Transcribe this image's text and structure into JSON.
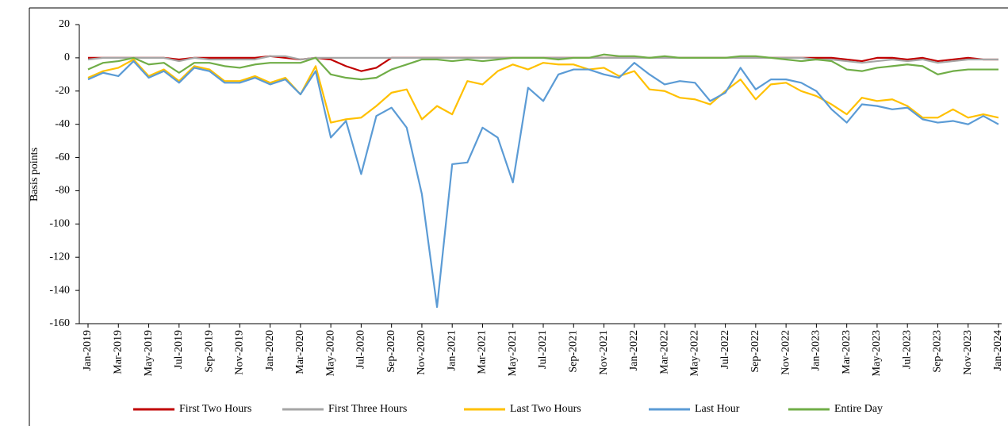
{
  "chart_data": {
    "type": "line",
    "ylabel": "Basis points",
    "categories": [
      "Jan-2019",
      null,
      "Mar-2019",
      null,
      "May-2019",
      null,
      "Jul-2019",
      null,
      "Sep-2019",
      null,
      "Nov-2019",
      null,
      "Jan-2020",
      null,
      "Mar-2020",
      null,
      "May-2020",
      null,
      "Jul-2020",
      null,
      "Sep-2020",
      null,
      "Nov-2020",
      null,
      "Jan-2021",
      null,
      "Mar-2021",
      null,
      "May-2021",
      null,
      "Jul-2021",
      null,
      "Sep-2021",
      null,
      "Nov-2021",
      null,
      "Jan-2022",
      null,
      "Mar-2022",
      null,
      "May-2022",
      null,
      "Jul-2022",
      null,
      "Sep-2022",
      null,
      "Nov-2022",
      null,
      "Jan-2023",
      null,
      "Mar-2023",
      null,
      "May-2023",
      null,
      "Jul-2023",
      null,
      "Sep-2023",
      null,
      "Nov-2023",
      null,
      "Jan-2024"
    ],
    "series": [
      {
        "name": "First Two Hours",
        "color": "#c00000",
        "values": [
          0,
          0,
          0,
          0,
          0,
          0,
          -1,
          0,
          0,
          0,
          0,
          0,
          1,
          0,
          -1,
          0,
          -1,
          -5,
          -8,
          -6,
          0,
          0,
          0,
          0,
          0,
          0,
          0,
          0,
          0,
          0,
          0,
          0,
          0,
          0,
          0,
          0,
          0,
          0,
          0,
          0,
          0,
          0,
          0,
          0,
          0,
          0,
          0,
          0,
          0,
          0,
          -1,
          -2,
          0,
          0,
          -1,
          0,
          -2,
          -1,
          0,
          -1,
          -1
        ]
      },
      {
        "name": "First Three Hours",
        "color": "#a6a6a6",
        "values": [
          -1,
          0,
          0,
          0,
          0,
          0,
          -2,
          0,
          -1,
          -1,
          -1,
          -1,
          1,
          1,
          -1,
          0,
          0,
          0,
          0,
          0,
          0,
          0,
          0,
          0,
          0,
          0,
          0,
          0,
          0,
          0,
          0,
          0,
          0,
          0,
          0,
          0,
          0,
          0,
          0,
          0,
          0,
          0,
          0,
          0,
          0,
          0,
          0,
          0,
          -1,
          -1,
          -2,
          -3,
          -2,
          -1,
          -2,
          -1,
          -3,
          -2,
          -1,
          -1,
          -1
        ]
      },
      {
        "name": "Last Two Hours",
        "color": "#ffc000",
        "values": [
          -12,
          -8,
          -6,
          -1,
          -11,
          -7,
          -14,
          -5,
          -7,
          -14,
          -14,
          -11,
          -15,
          -12,
          -22,
          -5,
          -39,
          -37,
          -36,
          -29,
          -21,
          -19,
          -37,
          -29,
          -34,
          -14,
          -16,
          -8,
          -4,
          -7,
          -3,
          -4,
          -4,
          -7,
          -6,
          -11,
          -8,
          -19,
          -20,
          -24,
          -25,
          -28,
          -20,
          -13,
          -25,
          -16,
          -15,
          -20,
          -23,
          -28,
          -34,
          -24,
          -26,
          -25,
          -29,
          -36,
          -36,
          -31,
          -36,
          -34,
          -36
        ]
      },
      {
        "name": "Last Hour",
        "color": "#5b9bd5",
        "values": [
          -13,
          -9,
          -11,
          -2,
          -12,
          -8,
          -15,
          -6,
          -8,
          -15,
          -15,
          -12,
          -16,
          -13,
          -22,
          -8,
          -48,
          -38,
          -70,
          -35,
          -30,
          -42,
          -82,
          -150,
          -64,
          -63,
          -42,
          -48,
          -75,
          -18,
          -26,
          -10,
          -7,
          -7,
          -10,
          -12,
          -3,
          -10,
          -16,
          -14,
          -15,
          -26,
          -21,
          -6,
          -19,
          -13,
          -13,
          -15,
          -20,
          -31,
          -39,
          -28,
          -29,
          -31,
          -30,
          -37,
          -39,
          -38,
          -40,
          -35,
          -40
        ]
      },
      {
        "name": "Entire Day",
        "color": "#70ad47",
        "values": [
          -7,
          -3,
          -2,
          0,
          -4,
          -3,
          -9,
          -3,
          -3,
          -5,
          -6,
          -4,
          -3,
          -3,
          -3,
          0,
          -10,
          -12,
          -13,
          -12,
          -7,
          -4,
          -1,
          -1,
          -2,
          -1,
          -2,
          -1,
          0,
          0,
          0,
          -1,
          0,
          0,
          2,
          1,
          1,
          0,
          1,
          0,
          0,
          0,
          0,
          1,
          1,
          0,
          -1,
          -2,
          -1,
          -2,
          -7,
          -8,
          -6,
          -5,
          -4,
          -5,
          -10,
          -8,
          -7,
          -7,
          -7
        ]
      }
    ],
    "ylim": [
      -160,
      20
    ],
    "yticks": [
      -160,
      -140,
      -120,
      -100,
      -80,
      -60,
      -40,
      -20,
      0,
      20
    ],
    "grid": false,
    "legend": "bottom"
  }
}
